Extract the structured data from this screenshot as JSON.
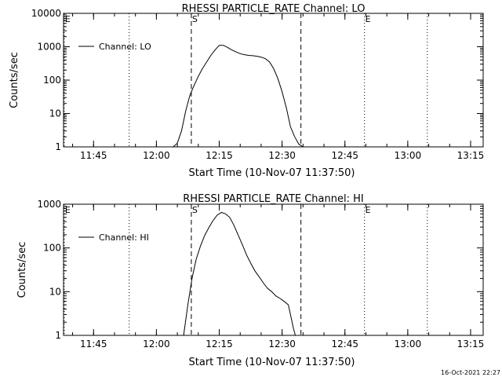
{
  "chart_data": [
    {
      "type": "line",
      "title": "RHESSI PARTICLE_RATE Channel: LO",
      "xlabel": "Start Time (10-Nov-07 11:37:50)",
      "ylabel": "Counts/sec",
      "yscale": "log",
      "ylim": [
        1,
        10000
      ],
      "xlim": [
        "11:37:50",
        "13:18:00"
      ],
      "x_ticks": [
        "11:45",
        "12:00",
        "12:15",
        "12:30",
        "12:45",
        "13:00",
        "13:15"
      ],
      "y_ticks": [
        "1",
        "10",
        "100",
        "1000",
        "10000"
      ],
      "legend": {
        "position": "top-left",
        "entries": [
          "Channel: LO"
        ]
      },
      "markers": [
        {
          "label": "E",
          "time": "11:38:00",
          "style": "dotted"
        },
        {
          "label": "",
          "time": "11:53:30",
          "style": "dotted"
        },
        {
          "label": "S",
          "time": "12:08:20",
          "style": "dashed"
        },
        {
          "label": "",
          "time": "12:34:30",
          "style": "dashed"
        },
        {
          "label": "E",
          "time": "12:49:40",
          "style": "dotted"
        },
        {
          "label": "",
          "time": "13:04:40",
          "style": "dotted"
        }
      ],
      "series": [
        {
          "name": "Channel: LO",
          "x": [
            "12:04:00",
            "12:05:00",
            "12:06:00",
            "12:07:00",
            "12:08:00",
            "12:09:00",
            "12:10:00",
            "12:11:00",
            "12:12:00",
            "12:13:00",
            "12:14:00",
            "12:15:00",
            "12:16:00",
            "12:17:00",
            "12:18:00",
            "12:19:00",
            "12:20:00",
            "12:21:00",
            "12:22:00",
            "12:23:00",
            "12:24:00",
            "12:25:00",
            "12:26:00",
            "12:27:00",
            "12:28:00",
            "12:29:00",
            "12:30:00",
            "12:31:00",
            "12:32:00",
            "12:33:00",
            "12:34:00",
            "12:35:00"
          ],
          "y": [
            1,
            1.3,
            3,
            12,
            35,
            70,
            130,
            220,
            350,
            550,
            800,
            1100,
            1100,
            950,
            800,
            700,
            620,
            580,
            550,
            540,
            520,
            490,
            440,
            350,
            220,
            110,
            45,
            15,
            4,
            2,
            1.2,
            1
          ]
        }
      ]
    },
    {
      "type": "line",
      "title": "RHESSI PARTICLE_RATE Channel: HI",
      "xlabel": "Start Time (10-Nov-07 11:37:50)",
      "ylabel": "Counts/sec",
      "yscale": "log",
      "ylim": [
        1,
        1000
      ],
      "xlim": [
        "11:37:50",
        "13:18:00"
      ],
      "x_ticks": [
        "11:45",
        "12:00",
        "12:15",
        "12:30",
        "12:45",
        "13:00",
        "13:15"
      ],
      "y_ticks": [
        "1",
        "10",
        "100",
        "1000"
      ],
      "legend": {
        "position": "top-left",
        "entries": [
          "Channel: HI"
        ]
      },
      "markers": [
        {
          "label": "E",
          "time": "11:38:00",
          "style": "dotted"
        },
        {
          "label": "",
          "time": "11:53:30",
          "style": "dotted"
        },
        {
          "label": "S",
          "time": "12:08:20",
          "style": "dashed"
        },
        {
          "label": "",
          "time": "12:34:30",
          "style": "dashed"
        },
        {
          "label": "E",
          "time": "12:49:40",
          "style": "dotted"
        },
        {
          "label": "",
          "time": "13:04:40",
          "style": "dotted"
        }
      ],
      "series": [
        {
          "name": "Channel: HI",
          "x": [
            "12:06:30",
            "12:07:30",
            "12:08:30",
            "12:09:30",
            "12:10:30",
            "12:11:30",
            "12:12:30",
            "12:13:30",
            "12:14:30",
            "12:15:30",
            "12:16:30",
            "12:17:30",
            "12:18:30",
            "12:19:30",
            "12:20:30",
            "12:21:30",
            "12:22:30",
            "12:23:30",
            "12:24:30",
            "12:25:30",
            "12:26:30",
            "12:27:30",
            "12:28:30",
            "12:29:30",
            "12:30:30",
            "12:31:30",
            "12:32:00",
            "12:32:40",
            "12:33:10"
          ],
          "y": [
            1,
            5,
            20,
            55,
            110,
            190,
            290,
            420,
            560,
            650,
            600,
            500,
            330,
            200,
            120,
            70,
            45,
            30,
            22,
            16,
            12,
            10,
            8,
            7,
            6,
            5,
            3,
            1.5,
            1
          ]
        }
      ]
    }
  ],
  "footer": {
    "timestamp": "16-Oct-2021 22:27"
  }
}
